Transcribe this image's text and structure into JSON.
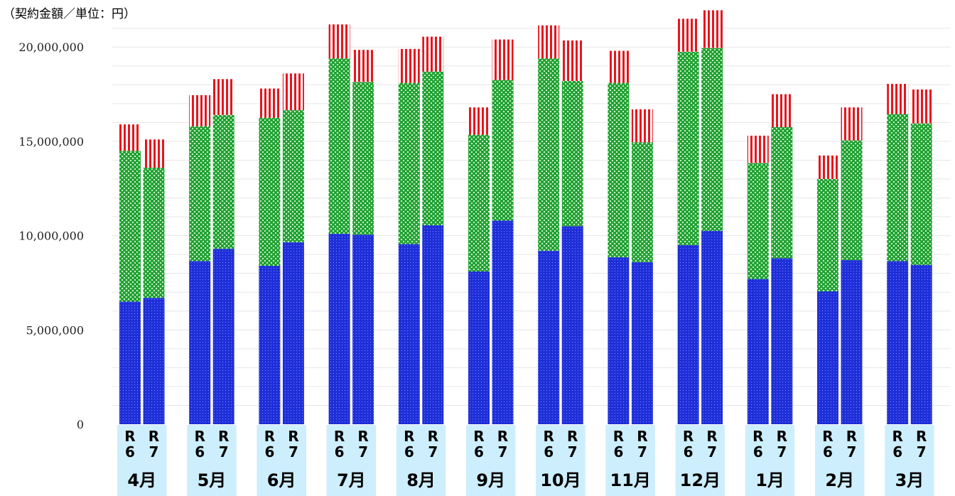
{
  "chart_data": {
    "type": "bar",
    "stacked": true,
    "title": "",
    "unit_label": "（契約金額／単位：円）",
    "ylim": [
      0,
      21000000
    ],
    "yticks": [
      0,
      5000000,
      10000000,
      15000000,
      20000000
    ],
    "ytick_labels": [
      "0",
      "5,000,000",
      "10,000,000",
      "15,000,000",
      "20,000,000"
    ],
    "grid": true,
    "months": [
      "4月",
      "5月",
      "6月",
      "7月",
      "8月",
      "9月",
      "10月",
      "11月",
      "12月",
      "1月",
      "2月",
      "3月"
    ],
    "years": [
      {
        "top": "R",
        "bottom": "6"
      },
      {
        "top": "R",
        "bottom": "7"
      }
    ],
    "series": [
      {
        "color": "#1f2fd8",
        "pattern": "dots",
        "values": [
          [
            6500000,
            6700000
          ],
          [
            8650000,
            9300000
          ],
          [
            8400000,
            9650000
          ],
          [
            10100000,
            10050000
          ],
          [
            9550000,
            10550000
          ],
          [
            8100000,
            10800000
          ],
          [
            9200000,
            10500000
          ],
          [
            8850000,
            8600000
          ],
          [
            9500000,
            10250000
          ],
          [
            7700000,
            8800000
          ],
          [
            7050000,
            8700000
          ],
          [
            8650000,
            8450000
          ]
        ]
      },
      {
        "color": "#29a83a",
        "pattern": "checker",
        "values": [
          [
            8000000,
            6900000
          ],
          [
            7150000,
            7100000
          ],
          [
            7850000,
            7000000
          ],
          [
            9300000,
            8100000
          ],
          [
            8550000,
            8150000
          ],
          [
            7250000,
            7450000
          ],
          [
            10200000,
            7700000
          ],
          [
            9250000,
            6350000
          ],
          [
            10250000,
            9700000
          ],
          [
            6150000,
            6950000
          ],
          [
            5950000,
            6350000
          ],
          [
            7800000,
            7500000
          ]
        ]
      },
      {
        "color": "#e8141c",
        "pattern": "vertical-stripes",
        "values": [
          [
            1400000,
            1500000
          ],
          [
            1650000,
            1900000
          ],
          [
            1550000,
            1950000
          ],
          [
            1800000,
            1700000
          ],
          [
            1800000,
            1850000
          ],
          [
            1450000,
            2150000
          ],
          [
            1750000,
            2150000
          ],
          [
            1700000,
            1750000
          ],
          [
            1750000,
            2000000
          ],
          [
            1450000,
            1750000
          ],
          [
            1250000,
            1750000
          ],
          [
            1600000,
            1800000
          ]
        ]
      }
    ]
  }
}
